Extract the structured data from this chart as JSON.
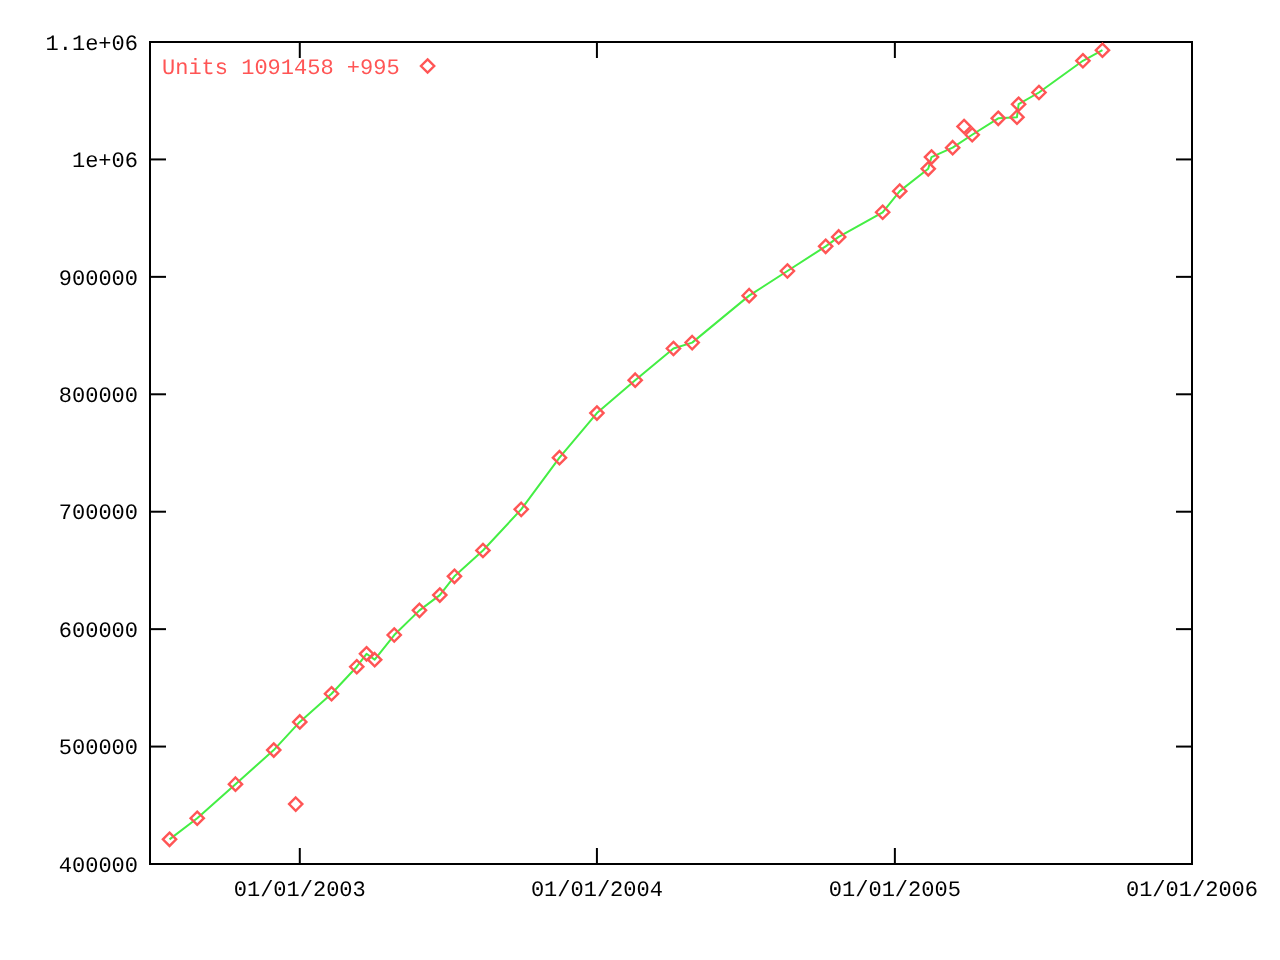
{
  "chart_data": {
    "type": "scatter",
    "legend": "top left",
    "grid": false,
    "xlim": [
      "2002-07-01",
      "2006-01-01"
    ],
    "xticks": [
      {
        "value": "2003-01-01",
        "label": "01/01/2003"
      },
      {
        "value": "2004-01-01",
        "label": "01/01/2004"
      },
      {
        "value": "2005-01-01",
        "label": "01/01/2005"
      },
      {
        "value": "2006-01-01",
        "label": "01/01/2006"
      }
    ],
    "ylim": [
      400000,
      1100000
    ],
    "yticks": [
      400000,
      500000,
      600000,
      700000,
      800000,
      900000,
      {
        "value": 1000000,
        "label": "1e+06"
      },
      {
        "value": 1100000,
        "label": "1.1e+06"
      }
    ],
    "series": [
      {
        "type": "line",
        "color": "#44ee44",
        "x": [
          "2002-07-25",
          "2002-08-28",
          "2002-10-14",
          "2002-11-30",
          "2003-01-01",
          "2003-02-09",
          "2003-03-12",
          "2003-03-24",
          "2003-04-03",
          "2003-04-27",
          "2003-05-28",
          "2003-06-22",
          "2003-07-10",
          "2003-08-14",
          "2003-09-30",
          "2003-11-16",
          "2004-01-01",
          "2004-02-17",
          "2004-04-04",
          "2004-04-27",
          "2004-07-06",
          "2004-08-22",
          "2004-10-08",
          "2004-10-24",
          "2004-12-17",
          "2005-01-07",
          "2005-02-11",
          "2005-02-15",
          "2005-03-13",
          "2005-04-06",
          "2005-05-08",
          "2005-05-31",
          "2005-06-02",
          "2005-06-27",
          "2005-08-20",
          "2005-09-13"
        ],
        "values": [
          421000,
          439000,
          468000,
          497000,
          521000,
          545000,
          568000,
          579000,
          574000,
          595000,
          616000,
          629000,
          645000,
          667000,
          702000,
          746000,
          784000,
          812000,
          839000,
          844000,
          884000,
          905000,
          926000,
          934000,
          955000,
          973000,
          992000,
          1002000,
          1010000,
          1021000,
          1035000,
          1036000,
          1047000,
          1057000,
          1084000,
          1093000
        ]
      },
      {
        "name": "Units 1091458 +995",
        "marker": "diamond",
        "color": "#ff5555",
        "x": [
          "2002-07-25",
          "2002-08-28",
          "2002-10-14",
          "2002-11-30",
          "2002-12-27",
          "2003-01-01",
          "2003-02-09",
          "2003-03-12",
          "2003-03-24",
          "2003-04-03",
          "2003-04-27",
          "2003-05-28",
          "2003-06-22",
          "2003-07-10",
          "2003-08-14",
          "2003-09-30",
          "2003-11-16",
          "2004-01-01",
          "2004-02-17",
          "2004-04-04",
          "2004-04-27",
          "2004-07-06",
          "2004-08-22",
          "2004-10-08",
          "2004-10-24",
          "2004-12-17",
          "2005-01-07",
          "2005-02-11",
          "2005-02-15",
          "2005-03-13",
          "2005-03-27",
          "2005-04-06",
          "2005-05-08",
          "2005-05-31",
          "2005-06-02",
          "2005-06-27",
          "2005-08-20",
          "2005-09-13"
        ],
        "values": [
          421000,
          439000,
          468000,
          497000,
          451000,
          521000,
          545000,
          568000,
          579000,
          574000,
          595000,
          616000,
          629000,
          645000,
          667000,
          702000,
          746000,
          784000,
          812000,
          839000,
          844000,
          884000,
          905000,
          926000,
          934000,
          955000,
          973000,
          992000,
          1002000,
          1010000,
          1028000,
          1021000,
          1035000,
          1036000,
          1047000,
          1057000,
          1084000,
          1093000
        ]
      }
    ]
  }
}
